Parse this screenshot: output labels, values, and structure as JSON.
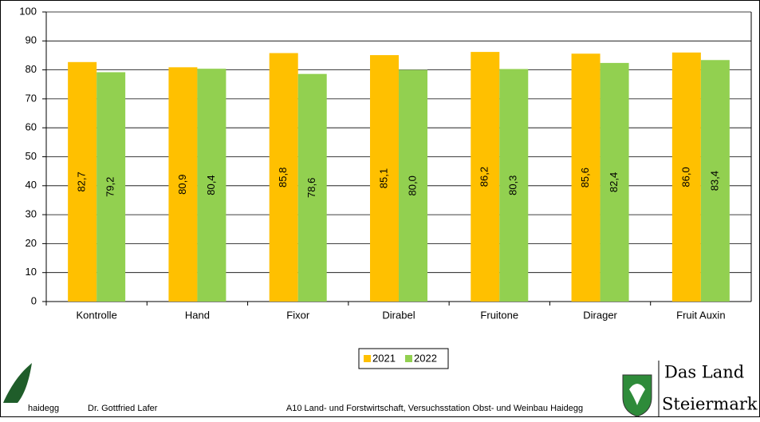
{
  "chart_data": {
    "type": "bar",
    "categories": [
      "Kontrolle",
      "Hand",
      "Fixor",
      "Dirabel",
      "Fruitone",
      "Dirager",
      "Fruit Auxin"
    ],
    "series": [
      {
        "name": "2021",
        "color": "#ffc000",
        "values": [
          82.7,
          80.9,
          85.8,
          85.1,
          86.2,
          85.6,
          86.0
        ],
        "value_labels": [
          "82,7",
          "80,9",
          "85,8",
          "85,1",
          "86,2",
          "85,6",
          "86,0"
        ]
      },
      {
        "name": "2022",
        "color": "#92d050",
        "values": [
          79.2,
          80.4,
          78.6,
          80.0,
          80.3,
          82.4,
          83.4
        ],
        "value_labels": [
          "79,2",
          "80,4",
          "78,6",
          "80,0",
          "80,3",
          "82,4",
          "83,4"
        ]
      }
    ],
    "ylim": [
      0,
      100
    ],
    "yticks": [
      0,
      10,
      20,
      30,
      40,
      50,
      60,
      70,
      80,
      90,
      100
    ],
    "grid": true,
    "legend": "bottom"
  },
  "footer": {
    "logo_left": "haidegg",
    "author": "Dr. Gottfried Lafer",
    "institution": "A10 Land- und Forstwirtschaft, Versuchsstation Obst- und Weinbau Haidegg",
    "logo_right": [
      "Das Land",
      "Steiermark"
    ]
  }
}
